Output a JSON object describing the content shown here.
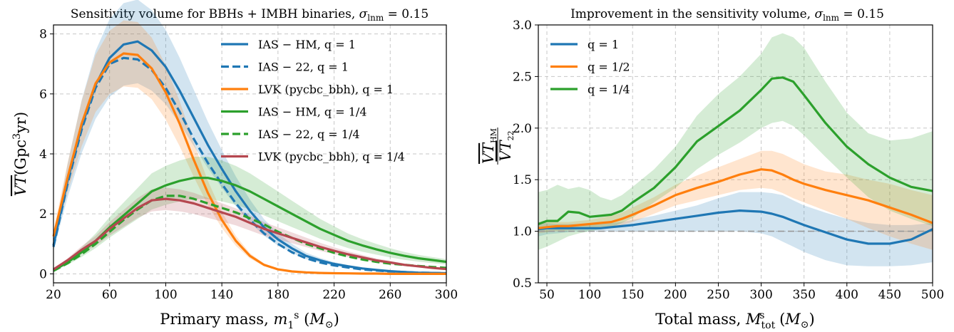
{
  "chart_data": [
    {
      "type": "line",
      "title": "Sensitivity volume for BBHs + IMBH binaries, σ_lnm = 0.15",
      "xlabel": "Primary mass, m₁ˢ (M⊙)",
      "ylabel": "VT (Gpc³yr)",
      "xlim": [
        20,
        300
      ],
      "ylim": [
        -0.3,
        8.3
      ],
      "xticks": [
        20,
        60,
        100,
        140,
        180,
        220,
        260,
        300
      ],
      "yticks": [
        0,
        2,
        4,
        6,
        8
      ],
      "grid": true,
      "legend_position": "top-right",
      "x": [
        20,
        30,
        40,
        50,
        60,
        70,
        80,
        90,
        100,
        110,
        120,
        130,
        140,
        150,
        160,
        170,
        180,
        190,
        200,
        210,
        220,
        230,
        240,
        250,
        260,
        270,
        280,
        290,
        300
      ],
      "series": [
        {
          "name": "IAS − HM, q = 1",
          "color": "#1f77b4",
          "dash": "solid",
          "band": 0.18,
          "values": [
            0.95,
            3.1,
            4.9,
            6.3,
            7.2,
            7.65,
            7.75,
            7.45,
            6.9,
            6.1,
            5.2,
            4.3,
            3.5,
            2.75,
            2.1,
            1.55,
            1.15,
            0.85,
            0.6,
            0.45,
            0.33,
            0.25,
            0.18,
            0.13,
            0.09,
            0.06,
            0.04,
            0.03,
            0.02
          ]
        },
        {
          "name": "IAS − 22, q = 1",
          "color": "#1f77b4",
          "dash": "dashed",
          "band": 0,
          "values": [
            0.9,
            3.0,
            4.8,
            6.2,
            7.0,
            7.2,
            7.15,
            6.8,
            6.2,
            5.4,
            4.5,
            3.7,
            3.0,
            2.35,
            1.8,
            1.35,
            1.0,
            0.72,
            0.52,
            0.38,
            0.28,
            0.21,
            0.15,
            0.11,
            0.08,
            0.06,
            0.04,
            0.03,
            0.02
          ]
        },
        {
          "name": "LVK (pycbc_bbh), q = 1",
          "color": "#ff7f0e",
          "dash": "solid",
          "band": 0.15,
          "values": [
            1.25,
            3.2,
            5.0,
            6.35,
            7.05,
            7.35,
            7.3,
            6.85,
            6.05,
            5.0,
            3.8,
            2.7,
            1.8,
            1.1,
            0.6,
            0.3,
            0.15,
            0.08,
            0.05,
            0.03,
            0.02,
            0.015,
            0.01,
            0.01,
            0.0,
            0.0,
            0.0,
            0.0,
            0.0
          ]
        },
        {
          "name": "IAS − HM, q = 1/4",
          "color": "#2ca02c",
          "dash": "solid",
          "band": 0.22,
          "values": [
            0.12,
            0.38,
            0.72,
            1.1,
            1.55,
            1.95,
            2.35,
            2.75,
            2.95,
            3.1,
            3.2,
            3.2,
            3.1,
            2.95,
            2.75,
            2.5,
            2.25,
            2.0,
            1.75,
            1.5,
            1.3,
            1.1,
            0.95,
            0.82,
            0.7,
            0.6,
            0.52,
            0.46,
            0.4
          ]
        },
        {
          "name": "IAS − 22, q = 1/4",
          "color": "#2ca02c",
          "dash": "dashed",
          "band": 0,
          "values": [
            0.1,
            0.35,
            0.65,
            1.0,
            1.4,
            1.8,
            2.15,
            2.45,
            2.6,
            2.6,
            2.5,
            2.35,
            2.2,
            2.05,
            1.85,
            1.65,
            1.4,
            1.2,
            1.0,
            0.85,
            0.7,
            0.58,
            0.48,
            0.4,
            0.34,
            0.3,
            0.26,
            0.23,
            0.2
          ]
        },
        {
          "name": "LVK (pycbc_bbh), q = 1/4",
          "color": "#b5474f",
          "dash": "solid",
          "band": 0.15,
          "values": [
            0.15,
            0.45,
            0.8,
            1.1,
            1.5,
            1.85,
            2.2,
            2.45,
            2.5,
            2.45,
            2.35,
            2.2,
            2.05,
            1.9,
            1.7,
            1.5,
            1.35,
            1.2,
            1.05,
            0.9,
            0.77,
            0.65,
            0.55,
            0.45,
            0.38,
            0.3,
            0.25,
            0.2,
            0.16
          ]
        }
      ]
    },
    {
      "type": "line",
      "title": "Improvement in the sensitivity volume, σ_lnm = 0.15",
      "xlabel": "Total mass, M_tot^s (M⊙)",
      "ylabel": "VT_HM / VT_22",
      "xlim": [
        40,
        500
      ],
      "ylim": [
        0.5,
        3.0
      ],
      "xticks": [
        50,
        100,
        150,
        200,
        250,
        300,
        350,
        400,
        450,
        500
      ],
      "yticks": [
        0.5,
        1.0,
        1.5,
        2.0,
        2.5,
        3.0
      ],
      "grid": true,
      "legend_position": "top-left",
      "reference_line": 1.0,
      "x": [
        40,
        50,
        62.5,
        75,
        87.5,
        100,
        112.5,
        125,
        137.5,
        150,
        175,
        200,
        225,
        250,
        275,
        300,
        312.5,
        325,
        337.5,
        350,
        375,
        400,
        425,
        450,
        475,
        500
      ],
      "series": [
        {
          "name": "q = 1",
          "color": "#1f77b4",
          "values": [
            1.02,
            1.03,
            1.03,
            1.03,
            1.03,
            1.03,
            1.03,
            1.04,
            1.05,
            1.06,
            1.09,
            1.12,
            1.15,
            1.18,
            1.2,
            1.19,
            1.17,
            1.14,
            1.1,
            1.06,
            0.99,
            0.92,
            0.88,
            0.88,
            0.92,
            1.02
          ],
          "band_lower": [
            0.95,
            0.97,
            0.98,
            0.99,
            1.0,
            1.0,
            1.0,
            1.0,
            1.0,
            1.0,
            1.0,
            1.0,
            1.0,
            1.0,
            1.0,
            0.98,
            0.95,
            0.9,
            0.85,
            0.8,
            0.72,
            0.67,
            0.66,
            0.66,
            0.67,
            0.7
          ],
          "band_upper": [
            1.08,
            1.08,
            1.07,
            1.07,
            1.07,
            1.07,
            1.07,
            1.08,
            1.09,
            1.11,
            1.15,
            1.2,
            1.25,
            1.32,
            1.38,
            1.38,
            1.37,
            1.35,
            1.3,
            1.25,
            1.18,
            1.12,
            1.08,
            1.06,
            1.06,
            1.08
          ]
        },
        {
          "name": "q = 1/2",
          "color": "#ff7f0e",
          "values": [
            1.03,
            1.04,
            1.05,
            1.05,
            1.06,
            1.07,
            1.08,
            1.09,
            1.12,
            1.16,
            1.25,
            1.35,
            1.42,
            1.48,
            1.55,
            1.6,
            1.59,
            1.55,
            1.5,
            1.46,
            1.4,
            1.35,
            1.3,
            1.23,
            1.16,
            1.08
          ],
          "band_lower": [
            0.98,
            0.99,
            1.0,
            1.01,
            1.02,
            1.03,
            1.03,
            1.04,
            1.06,
            1.09,
            1.17,
            1.25,
            1.3,
            1.35,
            1.4,
            1.42,
            1.41,
            1.37,
            1.32,
            1.28,
            1.2,
            1.12,
            1.03,
            0.95,
            0.88,
            0.82
          ],
          "band_upper": [
            1.09,
            1.09,
            1.09,
            1.09,
            1.1,
            1.11,
            1.13,
            1.15,
            1.18,
            1.23,
            1.33,
            1.45,
            1.54,
            1.62,
            1.7,
            1.78,
            1.78,
            1.75,
            1.7,
            1.65,
            1.58,
            1.55,
            1.5,
            1.46,
            1.4,
            1.35
          ]
        },
        {
          "name": "q = 1/4",
          "color": "#2ca02c",
          "values": [
            1.07,
            1.1,
            1.1,
            1.19,
            1.18,
            1.14,
            1.15,
            1.16,
            1.2,
            1.28,
            1.42,
            1.62,
            1.87,
            2.02,
            2.17,
            2.37,
            2.48,
            2.49,
            2.45,
            2.32,
            2.05,
            1.82,
            1.65,
            1.52,
            1.43,
            1.39
          ],
          "band_lower": [
            0.82,
            0.85,
            0.9,
            0.95,
            0.98,
            1.0,
            1.02,
            1.04,
            1.08,
            1.13,
            1.28,
            1.42,
            1.6,
            1.74,
            1.86,
            2.0,
            2.05,
            2.07,
            2.02,
            1.93,
            1.72,
            1.52,
            1.33,
            1.2,
            1.12,
            1.05
          ],
          "band_upper": [
            1.38,
            1.4,
            1.45,
            1.41,
            1.43,
            1.4,
            1.33,
            1.3,
            1.35,
            1.43,
            1.6,
            1.82,
            2.12,
            2.33,
            2.5,
            2.72,
            2.88,
            2.92,
            2.88,
            2.78,
            2.45,
            2.15,
            1.95,
            1.88,
            1.9,
            1.97
          ]
        }
      ]
    }
  ]
}
